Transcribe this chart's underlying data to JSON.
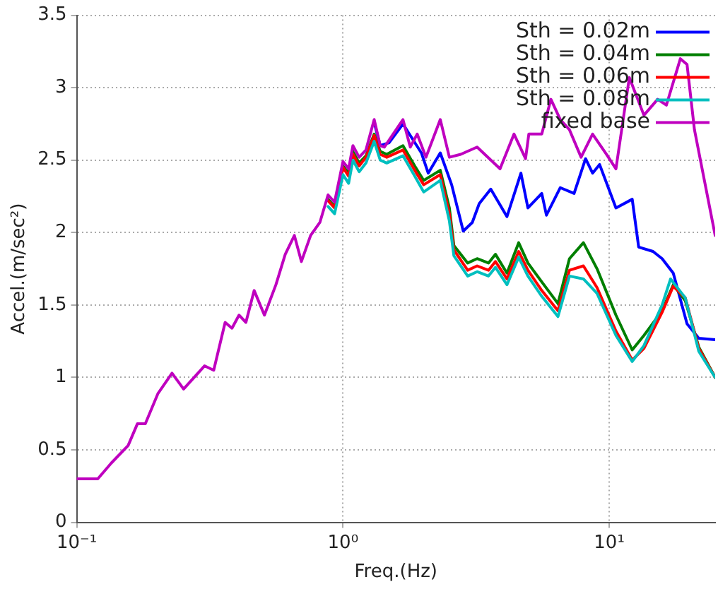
{
  "chart_data": {
    "type": "line",
    "xlabel": "Freq.(Hz)",
    "ylabel": "Accel.(m/sec²)",
    "log": "x",
    "grid": true,
    "legend": "top right",
    "marker": "none",
    "line_style": "solid",
    "xlim": [
      0.1,
      25
    ],
    "xticks": [
      {
        "value": 0.1,
        "label": "10⁻¹"
      },
      {
        "value": 1,
        "label": "10⁰"
      },
      {
        "value": 10,
        "label": "10¹"
      }
    ],
    "ylim": [
      0,
      3.5
    ],
    "yticks": [
      0,
      0.5,
      1,
      1.5,
      2,
      2.5,
      3,
      3.5
    ],
    "series": [
      {
        "name": "Sth = 0.02m",
        "color": "#0000ff",
        "x": [
          1.31,
          1.38,
          1.49,
          1.68,
          1.97,
          2.09,
          2.32,
          2.56,
          2.83,
          3.06,
          3.25,
          3.59,
          4.13,
          4.66,
          4.95,
          5.58,
          5.81,
          6.55,
          7.38,
          8.15,
          8.66,
          9.2,
          10.6,
          12.2,
          12.9,
          14.6,
          15.8,
          17.4,
          19.6,
          21.7,
          25
        ],
        "values": [
          2.76,
          2.6,
          2.62,
          2.75,
          2.55,
          2.41,
          2.55,
          2.33,
          2.01,
          2.07,
          2.2,
          2.3,
          2.11,
          2.41,
          2.17,
          2.27,
          2.12,
          2.31,
          2.27,
          2.51,
          2.41,
          2.47,
          2.17,
          2.23,
          1.9,
          1.87,
          1.82,
          1.72,
          1.37,
          1.27,
          1.26
        ]
      },
      {
        "name": "Sth = 0.04m",
        "color": "#007f00",
        "x": [
          0.879,
          0.93,
          1.0,
          1.05,
          1.09,
          1.15,
          1.22,
          1.31,
          1.38,
          1.46,
          1.68,
          1.86,
          2.01,
          2.32,
          2.51,
          2.61,
          2.94,
          3.19,
          3.52,
          3.74,
          4.13,
          4.57,
          4.95,
          5.58,
          6.42,
          7.09,
          8.0,
          9.0,
          10.6,
          12.2,
          13.5,
          15.8,
          17.4,
          19.3,
          21.7,
          25
        ],
        "values": [
          2.23,
          2.18,
          2.46,
          2.41,
          2.56,
          2.48,
          2.53,
          2.68,
          2.56,
          2.54,
          2.6,
          2.46,
          2.36,
          2.43,
          2.17,
          1.91,
          1.79,
          1.82,
          1.79,
          1.85,
          1.72,
          1.93,
          1.79,
          1.66,
          1.51,
          1.82,
          1.93,
          1.75,
          1.43,
          1.19,
          1.29,
          1.46,
          1.64,
          1.53,
          1.21,
          1.0
        ]
      },
      {
        "name": "Sth = 0.06m",
        "color": "#ff0000",
        "x": [
          0.879,
          0.93,
          1.0,
          1.05,
          1.09,
          1.15,
          1.22,
          1.31,
          1.38,
          1.46,
          1.68,
          1.86,
          2.01,
          2.32,
          2.51,
          2.61,
          2.94,
          3.19,
          3.52,
          3.74,
          4.13,
          4.57,
          4.95,
          5.58,
          6.42,
          7.09,
          8.0,
          9.0,
          10.6,
          12.2,
          13.5,
          15.8,
          17.4,
          19.3,
          21.7,
          25
        ],
        "values": [
          2.22,
          2.17,
          2.45,
          2.39,
          2.54,
          2.46,
          2.52,
          2.67,
          2.54,
          2.52,
          2.57,
          2.43,
          2.33,
          2.4,
          2.13,
          1.88,
          1.74,
          1.77,
          1.74,
          1.8,
          1.68,
          1.87,
          1.74,
          1.6,
          1.46,
          1.74,
          1.77,
          1.62,
          1.32,
          1.12,
          1.2,
          1.45,
          1.63,
          1.55,
          1.2,
          1.0
        ]
      },
      {
        "name": "Sth = 0.08m",
        "color": "#00bfbf",
        "x": [
          0.879,
          0.93,
          1.0,
          1.05,
          1.09,
          1.15,
          1.22,
          1.31,
          1.38,
          1.46,
          1.68,
          1.86,
          2.01,
          2.32,
          2.51,
          2.61,
          2.94,
          3.19,
          3.52,
          3.74,
          4.13,
          4.57,
          4.95,
          5.58,
          6.42,
          7.09,
          8.0,
          9.0,
          10.6,
          12.2,
          13.5,
          15.8,
          17.0,
          19.3,
          21.7,
          25
        ],
        "values": [
          2.18,
          2.13,
          2.4,
          2.34,
          2.5,
          2.42,
          2.48,
          2.63,
          2.5,
          2.48,
          2.53,
          2.39,
          2.28,
          2.36,
          2.08,
          1.84,
          1.7,
          1.73,
          1.7,
          1.76,
          1.64,
          1.83,
          1.7,
          1.56,
          1.42,
          1.7,
          1.68,
          1.58,
          1.29,
          1.11,
          1.22,
          1.5,
          1.68,
          1.55,
          1.18,
          1.0
        ]
      },
      {
        "name": "fixed base",
        "color": "#bf00bf",
        "x": [
          0.1,
          0.12,
          0.135,
          0.156,
          0.169,
          0.181,
          0.202,
          0.228,
          0.252,
          0.302,
          0.327,
          0.361,
          0.383,
          0.407,
          0.432,
          0.464,
          0.507,
          0.56,
          0.607,
          0.657,
          0.698,
          0.756,
          0.819,
          0.879,
          0.93,
          1.0,
          1.05,
          1.09,
          1.15,
          1.22,
          1.31,
          1.38,
          1.43,
          1.68,
          1.79,
          1.9,
          2.05,
          2.32,
          2.51,
          2.77,
          3.19,
          3.89,
          4.39,
          4.85,
          4.99,
          5.58,
          6.04,
          6.55,
          7.09,
          7.84,
          8.66,
          9.77,
          10.6,
          11.9,
          13.5,
          15.2,
          16.4,
          18.5,
          19.6,
          20.9,
          25
        ],
        "values": [
          0.3,
          0.3,
          0.41,
          0.53,
          0.68,
          0.68,
          0.89,
          1.03,
          0.92,
          1.08,
          1.05,
          1.38,
          1.34,
          1.43,
          1.38,
          1.6,
          1.43,
          1.64,
          1.85,
          1.98,
          1.8,
          1.98,
          2.07,
          2.26,
          2.21,
          2.49,
          2.44,
          2.6,
          2.52,
          2.57,
          2.78,
          2.6,
          2.59,
          2.78,
          2.59,
          2.68,
          2.52,
          2.78,
          2.52,
          2.54,
          2.59,
          2.44,
          2.68,
          2.51,
          2.68,
          2.68,
          2.92,
          2.78,
          2.71,
          2.52,
          2.68,
          2.54,
          2.44,
          3.07,
          2.81,
          2.92,
          2.88,
          3.2,
          3.16,
          2.71,
          1.98
        ]
      }
    ]
  }
}
